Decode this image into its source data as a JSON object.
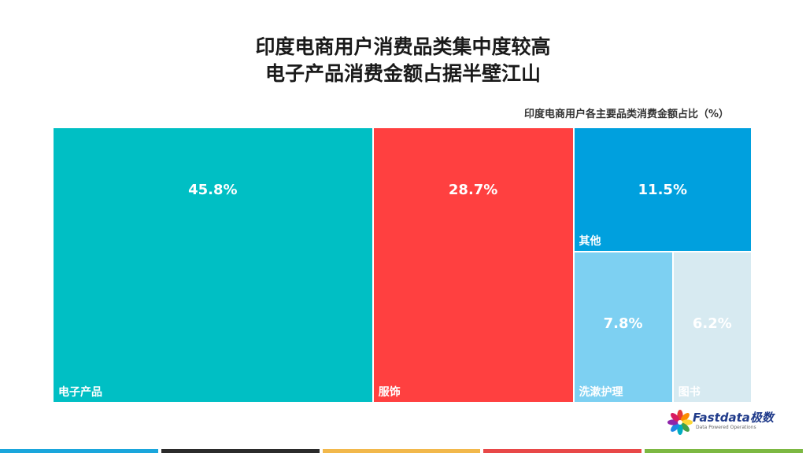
{
  "title_line1": "印度电商用户消费品类集中度较高",
  "title_line2": "电子产品消费金额占据半壁江山",
  "chart_data": {
    "type": "treemap",
    "title": "印度电商用户各主要品类消费金额占比（%）",
    "unit": "%",
    "items": [
      {
        "label": "电子产品",
        "value": 45.8,
        "value_text": "45.8%",
        "color": "#00BFC4"
      },
      {
        "label": "服饰",
        "value": 28.7,
        "value_text": "28.7%",
        "color": "#FF4040"
      },
      {
        "label": "其他",
        "value": 11.5,
        "value_text": "11.5%",
        "color": "#00A0DE"
      },
      {
        "label": "洗漱护理",
        "value": 7.8,
        "value_text": "7.8%",
        "color": "#7DD0F2"
      },
      {
        "label": "图书",
        "value": 6.2,
        "value_text": "6.2%",
        "color": "#D7EAF1"
      }
    ]
  },
  "logo": {
    "name": "Fastdata极数",
    "tagline": "Data Powered Operations",
    "petal_colors": [
      "#E53935",
      "#FB8C00",
      "#FDD835",
      "#43A047",
      "#00ACC1",
      "#1E88E5",
      "#8E24AA",
      "#D81B60"
    ]
  },
  "bottom_bar_colors": [
    "#1AA6DC",
    "#2B2B2B",
    "#F2B84B",
    "#E84848",
    "#7CB842"
  ]
}
